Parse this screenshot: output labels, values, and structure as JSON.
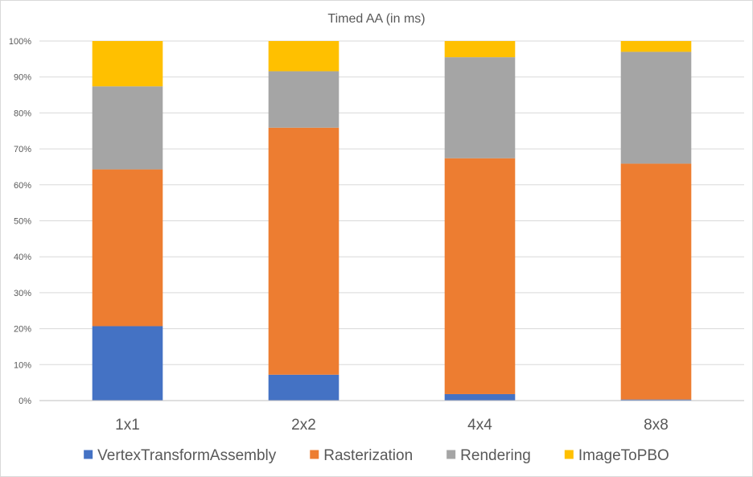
{
  "chart_data": {
    "type": "stacked-bar-100",
    "title": "Timed AA (in ms)",
    "categories": [
      "1x1",
      "2x2",
      "4x4",
      "8x8"
    ],
    "series": [
      {
        "name": "VertexTransformAssembly",
        "color": "#4472C4",
        "values": [
          20.7,
          7.2,
          1.8,
          0.3
        ]
      },
      {
        "name": "Rasterization",
        "color": "#ED7D31",
        "values": [
          43.6,
          68.7,
          65.6,
          65.6
        ]
      },
      {
        "name": "Rendering",
        "color": "#A5A5A5",
        "values": [
          23.1,
          15.7,
          28.1,
          31.1
        ]
      },
      {
        "name": "ImageToPBO",
        "color": "#FFC000",
        "values": [
          12.6,
          8.4,
          4.5,
          3.0
        ]
      }
    ],
    "ylim": [
      0,
      100
    ],
    "yticks": [
      "0%",
      "10%",
      "20%",
      "30%",
      "40%",
      "50%",
      "60%",
      "70%",
      "80%",
      "90%",
      "100%"
    ],
    "grid": true,
    "legend": "bottom"
  }
}
